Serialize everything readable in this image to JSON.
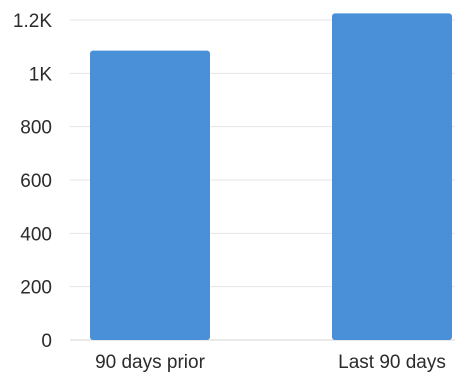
{
  "chart_data": {
    "type": "bar",
    "title": "",
    "xlabel": "",
    "ylabel": "",
    "categories": [
      "90 days prior",
      "Last 90 days"
    ],
    "values": [
      1085,
      1225
    ],
    "ylim": [
      0,
      1200
    ],
    "yticks": [
      0,
      200,
      400,
      600,
      800,
      1000,
      1200
    ],
    "ytick_labels": [
      "0",
      "200",
      "400",
      "600",
      "800",
      "1K",
      "1.2K"
    ],
    "grid": true,
    "legend": "none",
    "bar_color": "#4a90d9"
  }
}
